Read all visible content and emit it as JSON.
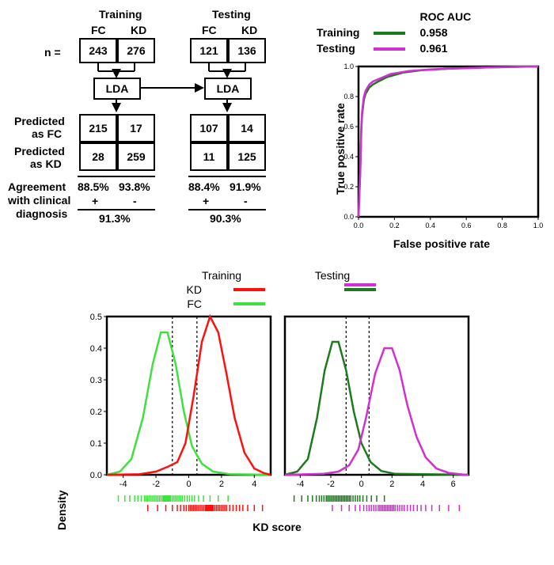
{
  "flow": {
    "col_headers": {
      "training": "Training",
      "testing": "Testing",
      "fc": "FC",
      "kd": "KD"
    },
    "row_labels": {
      "n": "n =",
      "pred_fc1": "Predicted",
      "pred_fc2": "as FC",
      "pred_kd1": "Predicted",
      "pred_kd2": "as KD",
      "agree1": "Agreement",
      "agree2": "with clinical",
      "agree3": "diagnosis"
    },
    "n_train_fc": "243",
    "n_train_kd": "276",
    "n_test_fc": "121",
    "n_test_kd": "136",
    "lda": "LDA",
    "cm_train_fc_fc": "215",
    "cm_train_fc_kd": "17",
    "cm_train_kd_fc": "28",
    "cm_train_kd_kd": "259",
    "cm_test_fc_fc": "107",
    "cm_test_fc_kd": "14",
    "cm_test_kd_fc": "11",
    "cm_test_kd_kd": "125",
    "agr_train_fc": "88.5%",
    "agr_train_kd": "93.8%",
    "agr_test_fc": "88.4%",
    "agr_test_kd": "91.9%",
    "plus": "+",
    "minus": "-",
    "overall_train": "91.3%",
    "overall_test": "90.3%"
  },
  "roc": {
    "title": "ROC AUC",
    "legend": {
      "training": "Training",
      "testing": "Testing"
    },
    "auc_training": "0.958",
    "auc_testing": "0.961",
    "xlabel": "False positive rate",
    "ylabel": "True positive rate",
    "colors": {
      "training": "#1d7a1d",
      "testing": "#d030d0"
    },
    "xlim": [
      0,
      1
    ],
    "ylim": [
      0,
      1
    ],
    "ticks": [
      "0.0",
      "0.2",
      "0.4",
      "0.6",
      "0.8",
      "1.0"
    ],
    "curve_training": [
      [
        0,
        0
      ],
      [
        0.01,
        0.3
      ],
      [
        0.015,
        0.55
      ],
      [
        0.02,
        0.68
      ],
      [
        0.03,
        0.78
      ],
      [
        0.04,
        0.82
      ],
      [
        0.06,
        0.86
      ],
      [
        0.08,
        0.88
      ],
      [
        0.11,
        0.9
      ],
      [
        0.16,
        0.93
      ],
      [
        0.25,
        0.96
      ],
      [
        0.35,
        0.975
      ],
      [
        0.5,
        0.985
      ],
      [
        0.7,
        0.993
      ],
      [
        0.9,
        0.998
      ],
      [
        1,
        1
      ]
    ],
    "curve_testing": [
      [
        0,
        0
      ],
      [
        0.01,
        0.32
      ],
      [
        0.015,
        0.58
      ],
      [
        0.02,
        0.7
      ],
      [
        0.03,
        0.8
      ],
      [
        0.04,
        0.84
      ],
      [
        0.06,
        0.88
      ],
      [
        0.08,
        0.9
      ],
      [
        0.12,
        0.92
      ],
      [
        0.18,
        0.95
      ],
      [
        0.28,
        0.97
      ],
      [
        0.4,
        0.98
      ],
      [
        0.55,
        0.988
      ],
      [
        0.75,
        0.995
      ],
      [
        0.9,
        0.998
      ],
      [
        1,
        1
      ]
    ]
  },
  "density": {
    "ylabel": "Density",
    "xlabel": "KD score",
    "legend": {
      "kd": "KD",
      "fc": "FC"
    },
    "header_training": "Training",
    "header_testing": "Testing",
    "colors": {
      "train_kd": "#ff1010",
      "train_fc": "#40e040",
      "test_kd": "#d030d0",
      "test_fc": "#1d7a1d"
    },
    "training": {
      "xlim": [
        -5,
        5
      ],
      "xticks": [
        -4,
        -2,
        0,
        2,
        4
      ],
      "ylim": [
        0,
        0.5
      ],
      "yticks": [
        0,
        0.1,
        0.2,
        0.3,
        0.4,
        0.5
      ],
      "thresholds": [
        -1.0,
        0.5
      ],
      "curve_fc": [
        [
          -5,
          0.0
        ],
        [
          -4.2,
          0.01
        ],
        [
          -3.5,
          0.05
        ],
        [
          -2.8,
          0.18
        ],
        [
          -2.2,
          0.35
        ],
        [
          -1.7,
          0.45
        ],
        [
          -1.3,
          0.45
        ],
        [
          -0.8,
          0.35
        ],
        [
          -0.3,
          0.2
        ],
        [
          0.2,
          0.09
        ],
        [
          0.8,
          0.035
        ],
        [
          1.5,
          0.01
        ],
        [
          2.5,
          0.002
        ],
        [
          5,
          0
        ]
      ],
      "curve_kd": [
        [
          -5,
          0
        ],
        [
          -3.0,
          0.002
        ],
        [
          -2.0,
          0.01
        ],
        [
          -1.3,
          0.025
        ],
        [
          -0.7,
          0.04
        ],
        [
          -0.2,
          0.1
        ],
        [
          0.3,
          0.25
        ],
        [
          0.8,
          0.42
        ],
        [
          1.3,
          0.5
        ],
        [
          1.8,
          0.45
        ],
        [
          2.3,
          0.32
        ],
        [
          2.8,
          0.18
        ],
        [
          3.4,
          0.07
        ],
        [
          4.0,
          0.02
        ],
        [
          4.6,
          0.005
        ],
        [
          5,
          0
        ]
      ],
      "rug_fc": [
        -4.3,
        -3.9,
        -3.6,
        -3.3,
        -3.1,
        -2.9,
        -2.7,
        -2.6,
        -2.5,
        -2.4,
        -2.3,
        -2.2,
        -2.1,
        -2.0,
        -1.9,
        -1.8,
        -1.7,
        -1.6,
        -1.55,
        -1.5,
        -1.45,
        -1.4,
        -1.35,
        -1.3,
        -1.25,
        -1.2,
        -1.15,
        -1.1,
        -1.0,
        -0.9,
        -0.8,
        -0.7,
        -0.6,
        -0.5,
        -0.4,
        -0.25,
        -0.1,
        0.05,
        0.2,
        0.35,
        0.6,
        0.9,
        1.3,
        1.8,
        2.4
      ],
      "rug_kd": [
        -2.5,
        -1.9,
        -1.4,
        -1.0,
        -0.7,
        -0.5,
        -0.3,
        -0.15,
        0,
        0.1,
        0.2,
        0.3,
        0.4,
        0.5,
        0.6,
        0.7,
        0.8,
        0.9,
        1.0,
        1.05,
        1.1,
        1.15,
        1.2,
        1.25,
        1.3,
        1.35,
        1.4,
        1.45,
        1.5,
        1.6,
        1.7,
        1.8,
        1.9,
        2.0,
        2.1,
        2.2,
        2.3,
        2.5,
        2.7,
        2.9,
        3.1,
        3.3,
        3.6,
        4.0,
        4.5
      ]
    },
    "testing": {
      "xlim": [
        -5,
        7
      ],
      "xticks": [
        -4,
        -2,
        0,
        2,
        4,
        6
      ],
      "ylim": [
        0,
        0.5
      ],
      "yticks": [
        0,
        0.1,
        0.2,
        0.3,
        0.4,
        0.5
      ],
      "thresholds": [
        -1.0,
        0.5
      ],
      "curve_fc": [
        [
          -5,
          0
        ],
        [
          -4.2,
          0.01
        ],
        [
          -3.5,
          0.05
        ],
        [
          -2.9,
          0.18
        ],
        [
          -2.4,
          0.33
        ],
        [
          -1.9,
          0.42
        ],
        [
          -1.5,
          0.42
        ],
        [
          -1.0,
          0.33
        ],
        [
          -0.5,
          0.2
        ],
        [
          0.0,
          0.1
        ],
        [
          0.6,
          0.04
        ],
        [
          1.3,
          0.012
        ],
        [
          2.2,
          0.003
        ],
        [
          7,
          0
        ]
      ],
      "curve_kd": [
        [
          -5,
          0
        ],
        [
          -2.5,
          0.003
        ],
        [
          -1.5,
          0.01
        ],
        [
          -0.8,
          0.03
        ],
        [
          -0.2,
          0.08
        ],
        [
          0.3,
          0.18
        ],
        [
          0.9,
          0.32
        ],
        [
          1.5,
          0.4
        ],
        [
          2.0,
          0.4
        ],
        [
          2.5,
          0.33
        ],
        [
          3.0,
          0.22
        ],
        [
          3.6,
          0.12
        ],
        [
          4.2,
          0.055
        ],
        [
          4.9,
          0.02
        ],
        [
          5.7,
          0.006
        ],
        [
          6.6,
          0.001
        ],
        [
          7,
          0
        ]
      ],
      "rug_fc": [
        -4.4,
        -3.9,
        -3.5,
        -3.2,
        -2.95,
        -2.75,
        -2.6,
        -2.45,
        -2.3,
        -2.2,
        -2.1,
        -2.0,
        -1.9,
        -1.8,
        -1.7,
        -1.6,
        -1.5,
        -1.4,
        -1.3,
        -1.2,
        -1.1,
        -1.0,
        -0.9,
        -0.8,
        -0.7,
        -0.55,
        -0.4,
        -0.25,
        -0.1,
        0.1,
        0.35,
        0.65,
        1.0,
        1.5
      ],
      "rug_kd": [
        -1.9,
        -1.3,
        -0.8,
        -0.4,
        -0.1,
        0.15,
        0.35,
        0.5,
        0.65,
        0.8,
        0.95,
        1.1,
        1.2,
        1.3,
        1.4,
        1.5,
        1.6,
        1.7,
        1.8,
        1.9,
        2.0,
        2.1,
        2.2,
        2.35,
        2.5,
        2.65,
        2.8,
        3.0,
        3.2,
        3.4,
        3.65,
        3.9,
        4.2,
        4.6,
        5.1,
        5.7,
        6.4
      ]
    }
  }
}
